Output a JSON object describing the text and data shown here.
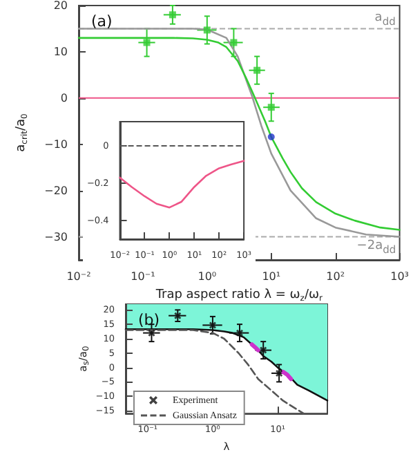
{
  "chart_data": [
    {
      "type": "line",
      "title": "(a)",
      "xlabel": "Trap aspect ratio λ = ω$_{z}$/ω$_{r}$",
      "ylabel": "a$_{crit}$/a$_{0}$",
      "log": "x",
      "grid": false,
      "legend": false,
      "xlim": [
        0.01,
        1000
      ],
      "xticks": [
        {
          "value": 0.01,
          "label": "10⁻²"
        },
        {
          "value": 0.1,
          "label": "10⁻¹"
        },
        {
          "value": 1,
          "label": "10⁰"
        },
        {
          "value": 10,
          "label": "10¹"
        },
        {
          "value": 100,
          "label": "10²"
        },
        {
          "value": 1000,
          "label": "10³"
        }
      ],
      "ylim": [
        -35,
        20
      ],
      "yticks": [
        {
          "value": -30,
          "label": "−30"
        },
        {
          "value": -20,
          "label": "−20"
        },
        {
          "value": -10,
          "label": "−10"
        },
        0,
        10,
        20
      ],
      "series": [
        {
          "type": "line",
          "color": "#999999",
          "x": [
            0.01,
            0.1,
            0.6,
            1,
            2,
            3,
            5,
            7,
            10,
            20,
            50,
            100,
            300,
            1000
          ],
          "values": [
            15,
            15,
            15,
            14.8,
            13,
            9,
            0.5,
            -6,
            -12,
            -20,
            -26,
            -28,
            -29.5,
            -30
          ]
        },
        {
          "type": "line",
          "color": "#33cc33",
          "x": [
            0.01,
            0.1,
            0.3,
            0.6,
            1,
            1.5,
            2,
            3,
            4,
            5,
            6,
            8,
            10,
            15,
            20,
            30,
            50,
            100,
            200,
            500,
            1000
          ],
          "values": [
            13,
            13,
            13,
            12.9,
            12.6,
            12,
            11,
            8,
            4.5,
            1.5,
            -1,
            -5,
            -8.4,
            -13,
            -16,
            -19.5,
            -22.5,
            -25,
            -26.5,
            -28,
            -28.5
          ]
        },
        {
          "type": "scatter",
          "color": "#33cc33",
          "marker": "square",
          "x": [
            0.115,
            0.29,
            1.0,
            2.6,
            6,
            10
          ],
          "values": [
            12,
            18,
            14.7,
            12,
            6,
            -2
          ],
          "errors": [
            3,
            2,
            3,
            3,
            3,
            3
          ],
          "xerrors": [
            [
              0.085,
              0.155
            ],
            [
              0.21,
              0.39
            ],
            [
              0.7,
              1.4
            ],
            [
              1.8,
              3.6
            ],
            [
              4.5,
              8
            ],
            [
              7.5,
              13.5
            ]
          ]
        },
        {
          "type": "scatter",
          "color": "#2233cc",
          "marker": "circle",
          "x": [
            10
          ],
          "values": [
            -8.4
          ]
        }
      ],
      "ref_lines": [
        {
          "axis": "y",
          "value": 15,
          "label": "a$_{dd}$",
          "color": "#aaaaaa",
          "line_style": "dashed"
        },
        {
          "axis": "y",
          "value": -30,
          "label": "−2a$_{dd}$",
          "color": "#aaaaaa",
          "line_style": "dashed"
        },
        {
          "axis": "y",
          "value": 0,
          "color": "#ee5588",
          "line_style": "solid"
        }
      ]
    },
    {
      "type": "line",
      "log": "x",
      "grid": false,
      "legend": false,
      "xlim": [
        0.01,
        1000
      ],
      "xticks": [
        {
          "value": 0.01,
          "label": "10⁻²"
        },
        {
          "value": 0.1,
          "label": "10⁻¹"
        },
        {
          "value": 1,
          "label": "10⁰"
        },
        {
          "value": 10,
          "label": "10¹"
        },
        {
          "value": 100,
          "label": "10²"
        },
        {
          "value": 1000,
          "label": "10³"
        }
      ],
      "ylim": [
        -0.5,
        0.13
      ],
      "yticks": [
        {
          "value": -0.4,
          "label": "−0.4"
        },
        {
          "value": -0.2,
          "label": "−0.2"
        },
        0
      ],
      "series": [
        {
          "type": "line",
          "color": "#ee5588",
          "x": [
            0.01,
            0.03,
            0.1,
            0.3,
            1,
            3,
            10,
            30,
            100,
            300,
            1000
          ],
          "values": [
            -0.17,
            -0.22,
            -0.27,
            -0.31,
            -0.33,
            -0.3,
            -0.22,
            -0.16,
            -0.12,
            -0.1,
            -0.08
          ]
        }
      ],
      "ref_lines": [
        {
          "axis": "y",
          "value": 0,
          "color": "#555555",
          "line_style": "dashed"
        }
      ]
    },
    {
      "type": "line",
      "title": "(b)",
      "xlabel": "λ",
      "ylabel": "a$_{s}$/a$_{0}$",
      "log": "x",
      "grid": false,
      "legend": "bottom left",
      "xlim": [
        0.046,
        58
      ],
      "xticks": [
        {
          "value": 0.1,
          "label": "10⁻¹"
        },
        {
          "value": 1,
          "label": "10⁰"
        },
        {
          "value": 10,
          "label": "10¹"
        }
      ],
      "ylim": [
        -16,
        22
      ],
      "yticks": [
        {
          "value": -15,
          "label": "−15"
        },
        {
          "value": -10,
          "label": "−10"
        },
        {
          "value": -5,
          "label": "−5"
        },
        0,
        5,
        10,
        15,
        20
      ],
      "series": [
        {
          "type": "line",
          "color": "#111111",
          "x": [
            0.046,
            0.5,
            1,
            1.5,
            2,
            3,
            4,
            5,
            6,
            8,
            10,
            15,
            20,
            30,
            58
          ],
          "values": [
            13.3,
            13.3,
            13,
            12.5,
            12,
            10.5,
            8,
            6,
            4,
            2,
            0,
            -3,
            -6,
            -8,
            -11.5
          ],
          "lower": [
            13.3,
            13.3,
            13,
            12.5,
            12,
            10.5,
            8,
            6,
            4,
            2,
            0,
            -3,
            -6,
            -8,
            -11.5
          ],
          "upper": [
            22,
            22,
            22,
            22,
            22,
            22,
            22,
            22,
            22,
            22,
            22,
            22,
            22,
            22,
            22
          ]
        },
        {
          "type": "line",
          "color": "#cc33cc",
          "x": [
            4,
            4.5,
            5,
            8,
            12,
            14,
            16
          ],
          "values": [
            8,
            7,
            6,
            null,
            -1.5,
            -2.5,
            -4
          ]
        },
        {
          "type": "scatter",
          "name": "Experiment",
          "color": "#111111",
          "marker": "cross",
          "x": [
            0.115,
            0.29,
            1.0,
            2.6,
            6,
            10.5
          ],
          "values": [
            12,
            18,
            14.7,
            12,
            6,
            -2
          ],
          "errors": [
            3,
            2,
            3,
            3,
            3,
            3
          ],
          "xerrors": [
            [
              0.085,
              0.155
            ],
            [
              0.21,
              0.39
            ],
            [
              0.7,
              1.4
            ],
            [
              1.8,
              3.6
            ],
            [
              4.5,
              8
            ],
            [
              8,
              14
            ]
          ]
        },
        {
          "type": "line",
          "name": "Gaussian Ansatz",
          "color": "#555555",
          "line_style": "dashed",
          "x": [
            0.046,
            0.5,
            1,
            1.5,
            2.5,
            3.5,
            5,
            8,
            12,
            18,
            25
          ],
          "values": [
            13,
            13,
            12,
            10,
            5,
            1,
            -4,
            -8,
            -11.5,
            -14,
            -16
          ]
        }
      ]
    }
  ]
}
